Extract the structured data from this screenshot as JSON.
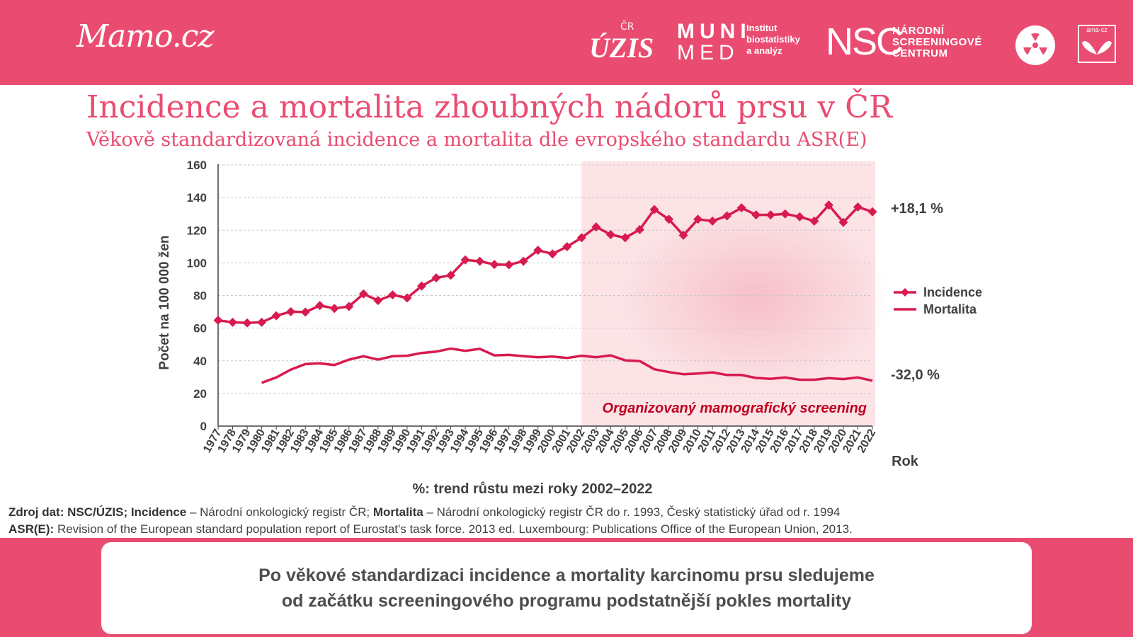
{
  "header": {
    "logo_mamo": "Mamo.cz",
    "logo_uzis": "ÚZIS",
    "logo_uzis_sub": "ČR",
    "logo_muni": "MUNI",
    "logo_med": "MED",
    "institut_lines": [
      "Institut",
      "biostatistiky",
      "a analýz"
    ],
    "logo_nsc": "NSC",
    "nsc_lines": [
      "NÁRODNÍ",
      "SCREENINGOVÉ",
      "CENTRUM"
    ],
    "logo_ama": "ama-cz"
  },
  "title": "Incidence a mortalita zhoubných nádorů prsu v ČR",
  "subtitle": "Věkově standardizovaná incidence a mortalita dle evropského standardu ASR(E)",
  "colors": {
    "brand": "#ea4c71",
    "incidence": "#d81b4f",
    "mortality": "#d81b4f",
    "screening_band": "#fbe3e6",
    "screening_text": "#c00020"
  },
  "chart_data": {
    "type": "line",
    "ylabel": "Počet  na 100 000 žen",
    "xlabel": "Rok",
    "ylim": [
      0,
      160
    ],
    "yticks": [
      0,
      20,
      40,
      60,
      80,
      100,
      120,
      140,
      160
    ],
    "x": [
      "1977",
      "1978",
      "1979",
      "1980",
      "1981",
      "1982",
      "1983",
      "1984",
      "1985",
      "1986",
      "1987",
      "1988",
      "1989",
      "1990",
      "1991",
      "1992",
      "1993",
      "1994",
      "1995",
      "1996",
      "1997",
      "1998",
      "1999",
      "2000",
      "2001",
      "2002",
      "2003",
      "2004",
      "2005",
      "2006",
      "2007",
      "2008",
      "2009",
      "2010",
      "2011",
      "2012",
      "2013",
      "2014",
      "2015",
      "2016",
      "2017",
      "2018",
      "2019",
      "2020",
      "2021",
      "2022"
    ],
    "series": [
      {
        "name": "Incidence",
        "marker": "diamond",
        "values": [
          64.8,
          63.6,
          63.2,
          63.6,
          67.6,
          70.1,
          69.8,
          73.9,
          72.1,
          73.3,
          81.0,
          76.9,
          80.4,
          78.5,
          85.8,
          90.8,
          92.4,
          101.8,
          101.0,
          99.0,
          98.8,
          101.0,
          107.7,
          105.5,
          109.9,
          115.4,
          122.0,
          117.3,
          115.4,
          120.4,
          132.7,
          126.7,
          116.9,
          126.7,
          125.6,
          128.8,
          133.7,
          129.4,
          129.4,
          130.0,
          128.2,
          125.6,
          135.4,
          124.8,
          134.2,
          131.3
        ],
        "trend_label": "+18,1 %"
      },
      {
        "name": "Mortalita",
        "marker": "none",
        "values": [
          null,
          null,
          null,
          26.5,
          29.8,
          34.6,
          38.0,
          38.4,
          37.4,
          40.7,
          42.8,
          40.7,
          42.8,
          43.1,
          44.8,
          45.6,
          47.5,
          46.1,
          47.3,
          43.3,
          43.6,
          42.8,
          42.2,
          42.6,
          41.7,
          43.1,
          42.2,
          43.3,
          40.3,
          39.8,
          34.8,
          33.1,
          31.8,
          32.2,
          32.9,
          31.3,
          31.3,
          29.5,
          28.9,
          29.8,
          28.4,
          28.4,
          29.4,
          28.8,
          29.8,
          27.8
        ],
        "trend_label": "-32,0 %"
      }
    ],
    "screening_start": "2002",
    "screening_label": "Organizovaný mamografický screening",
    "trend_note": "%: trend růstu mezi roky 2002–2022",
    "legend": "right",
    "grid": "horizontal dashed"
  },
  "source": {
    "line1_label": "Zdroj dat: NSC/ÚZIS; ",
    "inc_label": "Incidence",
    "inc_text": " – Národní onkologický registr ČR; ",
    "mort_label": "Mortalita",
    "mort_text": " – Národní onkologický registr ČR do r. 1993, Český statistický úřad od r. 1994",
    "line2_label": "ASR(E):",
    "line2_text": " Revision of the European standard population report of Eurostat's task force. 2013 ed. Luxembourg: Publications Office of the European Union, 2013."
  },
  "callout": {
    "line1": "Po věkové standardizaci incidence a mortality karcinomu prsu sledujeme",
    "line2": "od začátku screeningového programu podstatnější pokles mortality"
  }
}
